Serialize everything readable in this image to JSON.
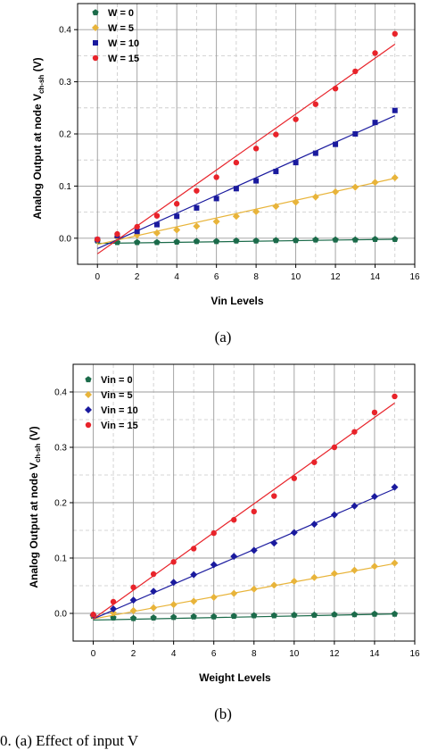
{
  "colors": {
    "series0": "#1b6b4a",
    "series1": "#e8b43a",
    "series2": "#1a1a9e",
    "series3": "#e8232a",
    "grid_major": "#9a9a9a",
    "grid_minor": "#c8c8c8"
  },
  "chart_data": [
    {
      "type": "scatter",
      "panel_label": "(a)",
      "xlabel": "Vin Levels",
      "ylabel_main": "Analog Output at node V",
      "ylabel_sub": "ch-sh",
      "ylabel_unit": " (V)",
      "xlim": [
        -1,
        16
      ],
      "ylim": [
        -0.05,
        0.45
      ],
      "xticks": [
        0,
        2,
        4,
        6,
        8,
        10,
        12,
        14,
        16
      ],
      "yticks": [
        0.0,
        0.1,
        0.2,
        0.3,
        0.4
      ],
      "xtick_labels": [
        "0",
        "2",
        "4",
        "6",
        "8",
        "10",
        "12",
        "14",
        "16"
      ],
      "ytick_labels": [
        "0.0",
        "0.1",
        "0.2",
        "0.3",
        "0.4"
      ],
      "grid": true,
      "legend_position": "top-left",
      "series": [
        {
          "name": "W = 0",
          "marker": "pentagon",
          "x": [
            0,
            1,
            2,
            3,
            4,
            5,
            6,
            7,
            8,
            9,
            10,
            11,
            12,
            13,
            14,
            15
          ],
          "values": [
            -0.005,
            -0.008,
            -0.008,
            -0.008,
            -0.007,
            -0.006,
            -0.006,
            -0.005,
            -0.005,
            -0.004,
            -0.004,
            -0.003,
            -0.003,
            -0.003,
            -0.002,
            -0.002
          ],
          "fit": [
            -0.01,
            -0.002
          ]
        },
        {
          "name": "W = 5",
          "marker": "diamond",
          "x": [
            0,
            1,
            2,
            3,
            4,
            5,
            6,
            7,
            8,
            9,
            10,
            11,
            12,
            13,
            14,
            15
          ],
          "values": [
            -0.004,
            0.002,
            0.006,
            0.01,
            0.016,
            0.023,
            0.032,
            0.042,
            0.051,
            0.061,
            0.069,
            0.079,
            0.089,
            0.098,
            0.107,
            0.116
          ],
          "fit": [
            -0.012,
            0.115
          ]
        },
        {
          "name": "W = 10",
          "marker": "square",
          "x": [
            0,
            1,
            2,
            3,
            4,
            5,
            6,
            7,
            8,
            9,
            10,
            11,
            12,
            13,
            14,
            15
          ],
          "values": [
            -0.003,
            0.005,
            0.013,
            0.026,
            0.042,
            0.058,
            0.076,
            0.095,
            0.11,
            0.128,
            0.145,
            0.163,
            0.18,
            0.2,
            0.222,
            0.245
          ],
          "fit": [
            -0.02,
            0.235
          ]
        },
        {
          "name": "W = 15",
          "marker": "circle",
          "x": [
            0,
            1,
            2,
            3,
            4,
            5,
            6,
            7,
            8,
            9,
            10,
            11,
            12,
            13,
            14,
            15
          ],
          "values": [
            -0.002,
            0.008,
            0.022,
            0.043,
            0.066,
            0.091,
            0.117,
            0.145,
            0.172,
            0.199,
            0.228,
            0.257,
            0.287,
            0.32,
            0.355,
            0.392
          ],
          "fit": [
            -0.03,
            0.372
          ]
        }
      ]
    },
    {
      "type": "scatter",
      "panel_label": "(b)",
      "xlabel": "Weight Levels",
      "ylabel_main": "Analog Output at node V",
      "ylabel_sub": "ch-sh",
      "ylabel_unit": " (V)",
      "xlim": [
        -1,
        16
      ],
      "ylim": [
        -0.05,
        0.45
      ],
      "xticks": [
        0,
        2,
        4,
        6,
        8,
        10,
        12,
        14,
        16
      ],
      "yticks": [
        0.0,
        0.1,
        0.2,
        0.3,
        0.4
      ],
      "xtick_labels": [
        "0",
        "2",
        "4",
        "6",
        "8",
        "10",
        "12",
        "14",
        "16"
      ],
      "ytick_labels": [
        "0.0",
        "0.1",
        "0.2",
        "0.3",
        "0.4"
      ],
      "grid": true,
      "legend_position": "top-left",
      "series": [
        {
          "name": "Vin = 0",
          "marker": "pentagon",
          "x": [
            0,
            1,
            2,
            3,
            4,
            5,
            6,
            7,
            8,
            9,
            10,
            11,
            12,
            13,
            14,
            15
          ],
          "values": [
            -0.005,
            -0.008,
            -0.009,
            -0.008,
            -0.007,
            -0.006,
            -0.006,
            -0.005,
            -0.004,
            -0.004,
            -0.003,
            -0.003,
            -0.002,
            -0.002,
            -0.001,
            -0.001
          ],
          "fit": [
            -0.012,
            -0.001
          ]
        },
        {
          "name": "Vin = 5",
          "marker": "diamond",
          "x": [
            0,
            1,
            2,
            3,
            4,
            5,
            6,
            7,
            8,
            9,
            10,
            11,
            12,
            13,
            14,
            15
          ],
          "values": [
            -0.004,
            0.001,
            0.005,
            0.01,
            0.016,
            0.022,
            0.029,
            0.036,
            0.044,
            0.051,
            0.058,
            0.065,
            0.072,
            0.078,
            0.085,
            0.091
          ],
          "fit": [
            -0.01,
            0.09
          ]
        },
        {
          "name": "Vin = 10",
          "marker": "diamond",
          "x": [
            0,
            1,
            2,
            3,
            4,
            5,
            6,
            7,
            8,
            9,
            10,
            11,
            12,
            13,
            14,
            15
          ],
          "values": [
            -0.003,
            0.008,
            0.024,
            0.04,
            0.056,
            0.07,
            0.088,
            0.103,
            0.114,
            0.127,
            0.146,
            0.161,
            0.178,
            0.194,
            0.211,
            0.228
          ],
          "fit": [
            -0.01,
            0.225
          ]
        },
        {
          "name": "Vin = 15",
          "marker": "circle",
          "x": [
            0,
            1,
            2,
            3,
            4,
            5,
            6,
            7,
            8,
            9,
            10,
            11,
            12,
            13,
            14,
            15
          ],
          "values": [
            -0.002,
            0.021,
            0.047,
            0.071,
            0.093,
            0.117,
            0.145,
            0.169,
            0.184,
            0.212,
            0.244,
            0.273,
            0.3,
            0.328,
            0.363,
            0.392
          ],
          "fit": [
            -0.01,
            0.38
          ]
        }
      ]
    }
  ],
  "caption": "0. (a) Effect of input V"
}
